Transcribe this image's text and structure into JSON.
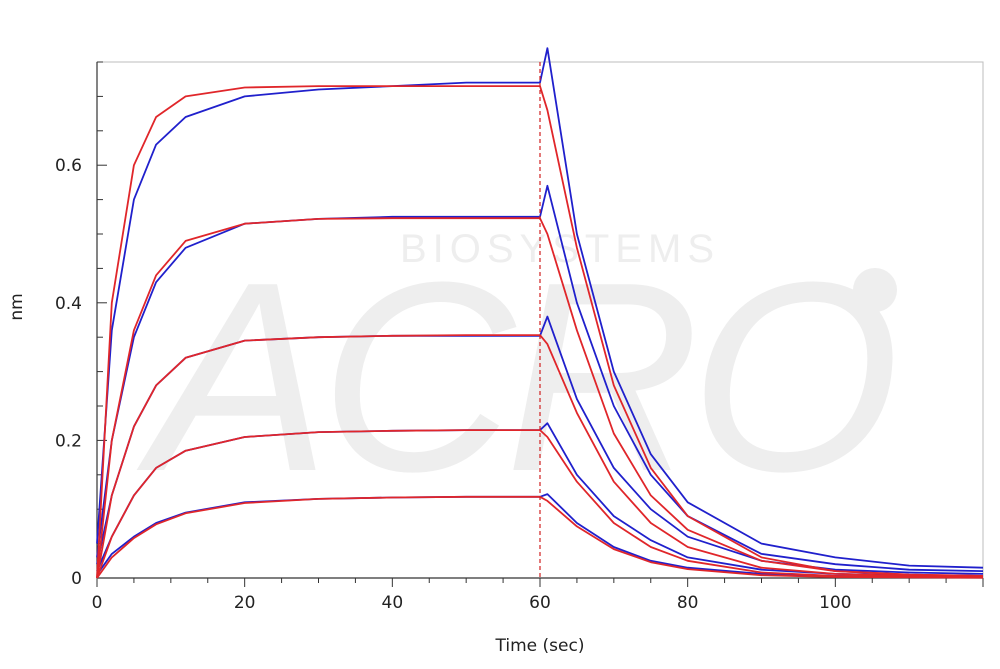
{
  "chart_data": {
    "type": "line",
    "title": "",
    "xlabel": "Time (sec)",
    "ylabel": "nm",
    "xlim": [
      0,
      120
    ],
    "ylim": [
      0,
      0.75
    ],
    "xticks": [
      0,
      20,
      40,
      60,
      80,
      100
    ],
    "yticks": [
      0,
      0.2,
      0.4,
      0.6
    ],
    "x_tick_labels": [
      "0",
      "20",
      "40",
      "60",
      "80",
      "100"
    ],
    "y_tick_labels": [
      "0",
      "0.2",
      "0.4",
      "0.6"
    ],
    "grid": false,
    "legend": "none",
    "watermark_text": "BIOSYSTEMS",
    "watermark_logo": "ACRO",
    "association_end": 60,
    "colors": {
      "measured": "#2020cc",
      "fit": "#e0262a",
      "divider": "#d02020",
      "axis": "#333333"
    },
    "measured_series": [
      {
        "x": [
          0,
          2,
          5,
          8,
          12,
          20,
          30,
          40,
          50,
          60,
          61,
          65,
          70,
          75,
          80,
          90,
          100,
          110,
          120
        ],
        "y": [
          0.05,
          0.36,
          0.55,
          0.63,
          0.67,
          0.7,
          0.71,
          0.715,
          0.72,
          0.72,
          0.77,
          0.5,
          0.3,
          0.18,
          0.11,
          0.05,
          0.03,
          0.018,
          0.015
        ]
      },
      {
        "x": [
          0,
          2,
          5,
          8,
          12,
          20,
          30,
          40,
          50,
          60,
          61,
          65,
          70,
          75,
          80,
          90,
          100,
          110,
          120
        ],
        "y": [
          0.03,
          0.2,
          0.35,
          0.43,
          0.48,
          0.515,
          0.522,
          0.525,
          0.525,
          0.525,
          0.57,
          0.4,
          0.25,
          0.15,
          0.09,
          0.035,
          0.02,
          0.012,
          0.01
        ]
      },
      {
        "x": [
          0,
          2,
          5,
          8,
          12,
          20,
          30,
          40,
          50,
          60,
          61,
          65,
          70,
          75,
          80,
          90,
          100,
          110,
          120
        ],
        "y": [
          0.02,
          0.12,
          0.22,
          0.28,
          0.32,
          0.345,
          0.35,
          0.352,
          0.352,
          0.352,
          0.38,
          0.26,
          0.16,
          0.1,
          0.06,
          0.025,
          0.012,
          0.008,
          0.006
        ]
      },
      {
        "x": [
          0,
          2,
          5,
          8,
          12,
          20,
          30,
          40,
          50,
          60,
          61,
          65,
          70,
          75,
          80,
          90,
          100,
          110,
          120
        ],
        "y": [
          0.01,
          0.06,
          0.12,
          0.16,
          0.185,
          0.205,
          0.212,
          0.214,
          0.215,
          0.215,
          0.225,
          0.15,
          0.09,
          0.055,
          0.03,
          0.012,
          0.006,
          0.004,
          0.003
        ]
      },
      {
        "x": [
          0,
          2,
          5,
          8,
          12,
          20,
          30,
          40,
          50,
          60,
          61,
          65,
          70,
          75,
          80,
          90,
          100,
          110,
          120
        ],
        "y": [
          0.005,
          0.035,
          0.06,
          0.08,
          0.095,
          0.11,
          0.115,
          0.117,
          0.118,
          0.118,
          0.122,
          0.08,
          0.045,
          0.025,
          0.015,
          0.006,
          0.003,
          0.002,
          0.002
        ]
      }
    ],
    "fit_series": [
      {
        "x": [
          0,
          2,
          5,
          8,
          12,
          20,
          30,
          40,
          50,
          60,
          61,
          65,
          70,
          75,
          80,
          90,
          100,
          110,
          120
        ],
        "y": [
          0.0,
          0.4,
          0.6,
          0.67,
          0.7,
          0.713,
          0.715,
          0.715,
          0.715,
          0.715,
          0.68,
          0.48,
          0.28,
          0.16,
          0.09,
          0.03,
          0.01,
          0.005,
          0.003
        ]
      },
      {
        "x": [
          0,
          2,
          5,
          8,
          12,
          20,
          30,
          40,
          50,
          60,
          61,
          65,
          70,
          75,
          80,
          90,
          100,
          110,
          120
        ],
        "y": [
          0.0,
          0.2,
          0.36,
          0.44,
          0.49,
          0.515,
          0.522,
          0.523,
          0.523,
          0.523,
          0.5,
          0.36,
          0.21,
          0.12,
          0.07,
          0.025,
          0.01,
          0.005,
          0.003
        ]
      },
      {
        "x": [
          0,
          2,
          5,
          8,
          12,
          20,
          30,
          40,
          50,
          60,
          61,
          65,
          70,
          75,
          80,
          90,
          100,
          110,
          120
        ],
        "y": [
          0.0,
          0.12,
          0.22,
          0.28,
          0.32,
          0.345,
          0.35,
          0.352,
          0.353,
          0.353,
          0.34,
          0.24,
          0.14,
          0.08,
          0.045,
          0.015,
          0.006,
          0.003,
          0.002
        ]
      },
      {
        "x": [
          0,
          2,
          5,
          8,
          12,
          20,
          30,
          40,
          50,
          60,
          61,
          65,
          70,
          75,
          80,
          90,
          100,
          110,
          120
        ],
        "y": [
          0.0,
          0.06,
          0.12,
          0.16,
          0.185,
          0.205,
          0.212,
          0.214,
          0.215,
          0.215,
          0.205,
          0.14,
          0.08,
          0.045,
          0.025,
          0.008,
          0.003,
          0.002,
          0.001
        ]
      },
      {
        "x": [
          0,
          2,
          5,
          8,
          12,
          20,
          30,
          40,
          50,
          60,
          61,
          65,
          70,
          75,
          80,
          90,
          100,
          110,
          120
        ],
        "y": [
          0.0,
          0.03,
          0.058,
          0.078,
          0.094,
          0.109,
          0.115,
          0.117,
          0.118,
          0.118,
          0.112,
          0.075,
          0.042,
          0.023,
          0.013,
          0.004,
          0.0015,
          0.001,
          0.0005
        ]
      }
    ]
  }
}
